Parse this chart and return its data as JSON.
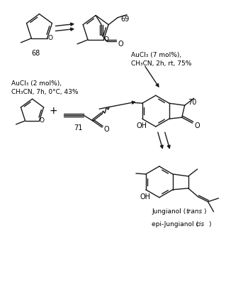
{
  "background": "#ffffff",
  "figsize": [
    3.43,
    3.98
  ],
  "dpi": 100,
  "line_color": "#1a1a1a",
  "text_color": "#000000",
  "conditions_top": "AuCl₃ (7 mol%),\nCH₃CN, 2h, rt, 75%",
  "conditions_bottom": "AuCl₃ (2 mol%),\nCH₃CN, 7h, 0°C, 43%",
  "label_68": "68",
  "label_69": "69",
  "label_70": "70",
  "label_71": "71",
  "label_jung1": "Jungianol (",
  "label_jung2": "trans",
  "label_jung3": ")",
  "label_jung4": "epi-Jungianol (",
  "label_jung5": "cis",
  "label_jung6": ")"
}
